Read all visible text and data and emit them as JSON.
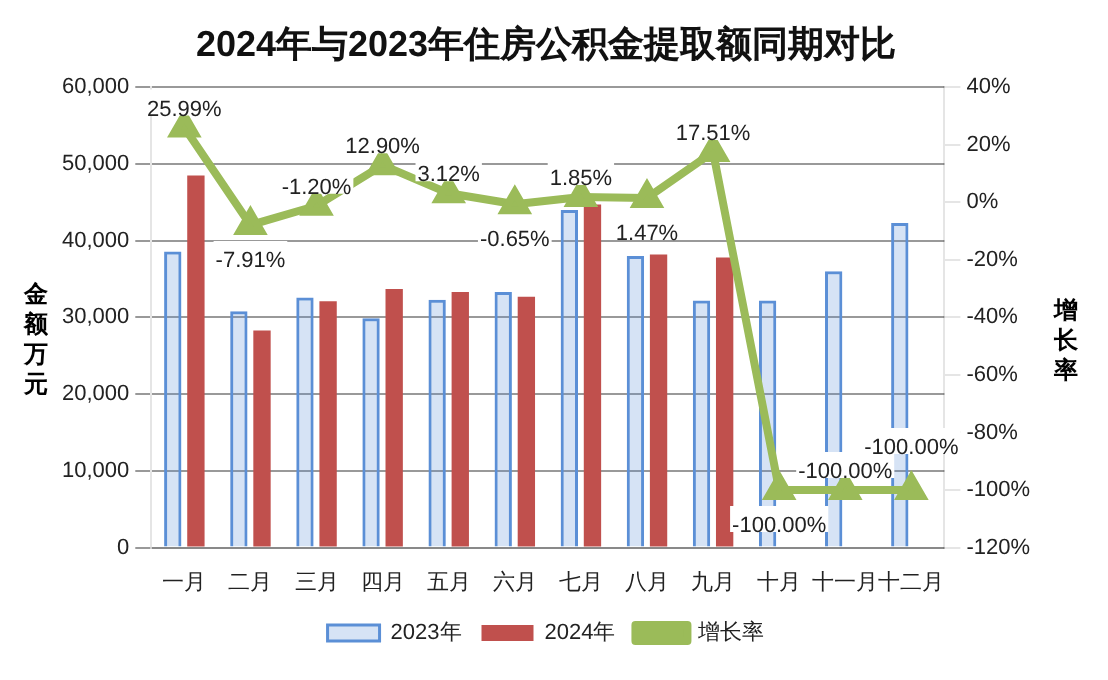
{
  "chart_data": {
    "type": "bar",
    "title": "2024年与2023年住房公积金提取额同期对比",
    "ylabel": "金额万元",
    "y2label": "增长率",
    "categories": [
      "一月",
      "二月",
      "三月",
      "四月",
      "五月",
      "六月",
      "七月",
      "八月",
      "九月",
      "十月",
      "十一月",
      "十二月"
    ],
    "series": [
      {
        "name": "2023年",
        "color": "#5b8fd6",
        "values": [
          38600,
          30800,
          32600,
          29900,
          32300,
          33300,
          44000,
          38000,
          32200,
          32200,
          36000,
          42300
        ]
      },
      {
        "name": "2024年",
        "color": "#c0504d",
        "values": [
          48500,
          28300,
          32100,
          33700,
          33300,
          32700,
          44700,
          38200,
          37800,
          0,
          0,
          0
        ]
      },
      {
        "name": "增长率",
        "type": "line",
        "axis": "y2",
        "color": "#9bbb59",
        "marker": "triangle",
        "values": [
          25.99,
          -7.91,
          -1.2,
          12.9,
          3.12,
          -0.65,
          1.85,
          1.47,
          17.51,
          -100,
          -100,
          -100
        ],
        "value_labels": [
          "25.99%",
          "-7.91%",
          "-1.20%",
          "12.90%",
          "3.12%",
          "-0.65%",
          "1.85%",
          "1.47%",
          "17.51%",
          "-100.00%",
          "-100.00%",
          "-100.00%"
        ]
      }
    ],
    "ylim": [
      0,
      60000
    ],
    "yticks": [
      {
        "value": 0,
        "label": "0"
      },
      {
        "value": 10000,
        "label": "10,000"
      },
      {
        "value": 20000,
        "label": "20,000"
      },
      {
        "value": 30000,
        "label": "30,000"
      },
      {
        "value": 40000,
        "label": "40,000"
      },
      {
        "value": 50000,
        "label": "50,000"
      },
      {
        "value": 60000,
        "label": "60,000"
      }
    ],
    "y2lim": [
      -120,
      40
    ],
    "y2ticks": [
      {
        "value": -120,
        "label": "-120%"
      },
      {
        "value": -100,
        "label": "-100%"
      },
      {
        "value": -80,
        "label": "-80%"
      },
      {
        "value": -60,
        "label": "-60%"
      },
      {
        "value": -40,
        "label": "-40%"
      },
      {
        "value": -20,
        "label": "-20%"
      },
      {
        "value": 0,
        "label": "0%"
      },
      {
        "value": 20,
        "label": "20%"
      },
      {
        "value": 40,
        "label": "40%"
      }
    ],
    "grid": "y",
    "legend": "bottom"
  }
}
